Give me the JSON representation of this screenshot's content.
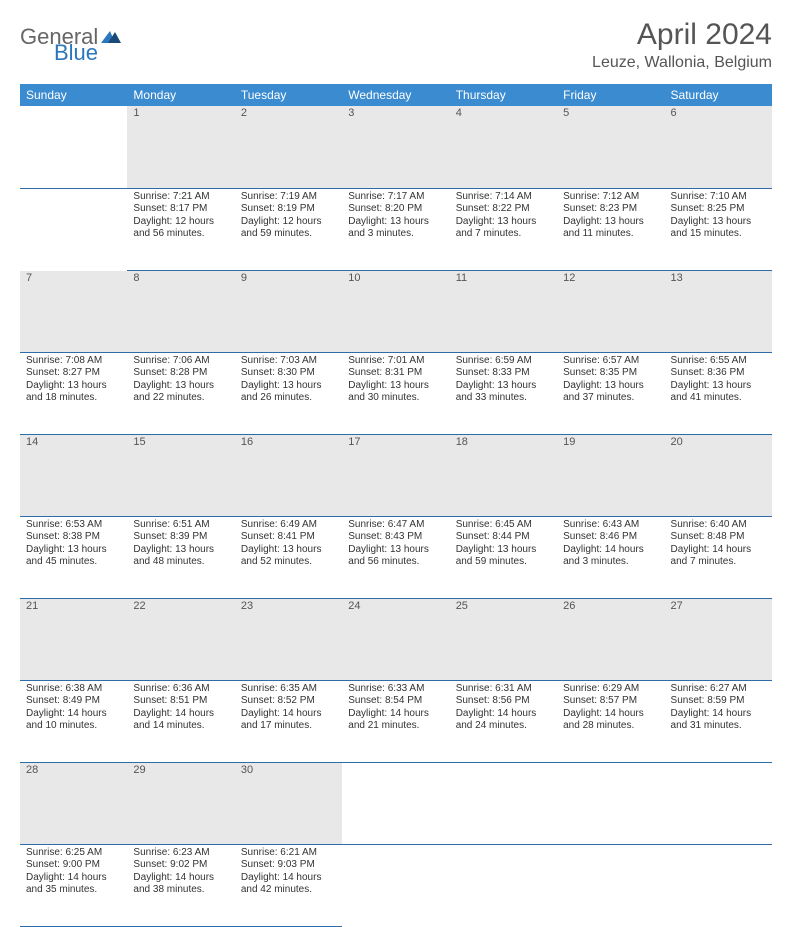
{
  "logo": {
    "text1": "General",
    "text2": "Blue"
  },
  "title": "April 2024",
  "location": "Leuze, Wallonia, Belgium",
  "colors": {
    "header_bg": "#3a8bd0",
    "header_fg": "#ffffff",
    "daynum_bg": "#e8e8e8",
    "rule": "#2c6ca8",
    "logo_accent": "#2c77bb"
  },
  "day_headers": [
    "Sunday",
    "Monday",
    "Tuesday",
    "Wednesday",
    "Thursday",
    "Friday",
    "Saturday"
  ],
  "weeks": [
    [
      null,
      {
        "n": "1",
        "sr": "Sunrise: 7:21 AM",
        "ss": "Sunset: 8:17 PM",
        "d1": "Daylight: 12 hours",
        "d2": "and 56 minutes."
      },
      {
        "n": "2",
        "sr": "Sunrise: 7:19 AM",
        "ss": "Sunset: 8:19 PM",
        "d1": "Daylight: 12 hours",
        "d2": "and 59 minutes."
      },
      {
        "n": "3",
        "sr": "Sunrise: 7:17 AM",
        "ss": "Sunset: 8:20 PM",
        "d1": "Daylight: 13 hours",
        "d2": "and 3 minutes."
      },
      {
        "n": "4",
        "sr": "Sunrise: 7:14 AM",
        "ss": "Sunset: 8:22 PM",
        "d1": "Daylight: 13 hours",
        "d2": "and 7 minutes."
      },
      {
        "n": "5",
        "sr": "Sunrise: 7:12 AM",
        "ss": "Sunset: 8:23 PM",
        "d1": "Daylight: 13 hours",
        "d2": "and 11 minutes."
      },
      {
        "n": "6",
        "sr": "Sunrise: 7:10 AM",
        "ss": "Sunset: 8:25 PM",
        "d1": "Daylight: 13 hours",
        "d2": "and 15 minutes."
      }
    ],
    [
      {
        "n": "7",
        "sr": "Sunrise: 7:08 AM",
        "ss": "Sunset: 8:27 PM",
        "d1": "Daylight: 13 hours",
        "d2": "and 18 minutes."
      },
      {
        "n": "8",
        "sr": "Sunrise: 7:06 AM",
        "ss": "Sunset: 8:28 PM",
        "d1": "Daylight: 13 hours",
        "d2": "and 22 minutes."
      },
      {
        "n": "9",
        "sr": "Sunrise: 7:03 AM",
        "ss": "Sunset: 8:30 PM",
        "d1": "Daylight: 13 hours",
        "d2": "and 26 minutes."
      },
      {
        "n": "10",
        "sr": "Sunrise: 7:01 AM",
        "ss": "Sunset: 8:31 PM",
        "d1": "Daylight: 13 hours",
        "d2": "and 30 minutes."
      },
      {
        "n": "11",
        "sr": "Sunrise: 6:59 AM",
        "ss": "Sunset: 8:33 PM",
        "d1": "Daylight: 13 hours",
        "d2": "and 33 minutes."
      },
      {
        "n": "12",
        "sr": "Sunrise: 6:57 AM",
        "ss": "Sunset: 8:35 PM",
        "d1": "Daylight: 13 hours",
        "d2": "and 37 minutes."
      },
      {
        "n": "13",
        "sr": "Sunrise: 6:55 AM",
        "ss": "Sunset: 8:36 PM",
        "d1": "Daylight: 13 hours",
        "d2": "and 41 minutes."
      }
    ],
    [
      {
        "n": "14",
        "sr": "Sunrise: 6:53 AM",
        "ss": "Sunset: 8:38 PM",
        "d1": "Daylight: 13 hours",
        "d2": "and 45 minutes."
      },
      {
        "n": "15",
        "sr": "Sunrise: 6:51 AM",
        "ss": "Sunset: 8:39 PM",
        "d1": "Daylight: 13 hours",
        "d2": "and 48 minutes."
      },
      {
        "n": "16",
        "sr": "Sunrise: 6:49 AM",
        "ss": "Sunset: 8:41 PM",
        "d1": "Daylight: 13 hours",
        "d2": "and 52 minutes."
      },
      {
        "n": "17",
        "sr": "Sunrise: 6:47 AM",
        "ss": "Sunset: 8:43 PM",
        "d1": "Daylight: 13 hours",
        "d2": "and 56 minutes."
      },
      {
        "n": "18",
        "sr": "Sunrise: 6:45 AM",
        "ss": "Sunset: 8:44 PM",
        "d1": "Daylight: 13 hours",
        "d2": "and 59 minutes."
      },
      {
        "n": "19",
        "sr": "Sunrise: 6:43 AM",
        "ss": "Sunset: 8:46 PM",
        "d1": "Daylight: 14 hours",
        "d2": "and 3 minutes."
      },
      {
        "n": "20",
        "sr": "Sunrise: 6:40 AM",
        "ss": "Sunset: 8:48 PM",
        "d1": "Daylight: 14 hours",
        "d2": "and 7 minutes."
      }
    ],
    [
      {
        "n": "21",
        "sr": "Sunrise: 6:38 AM",
        "ss": "Sunset: 8:49 PM",
        "d1": "Daylight: 14 hours",
        "d2": "and 10 minutes."
      },
      {
        "n": "22",
        "sr": "Sunrise: 6:36 AM",
        "ss": "Sunset: 8:51 PM",
        "d1": "Daylight: 14 hours",
        "d2": "and 14 minutes."
      },
      {
        "n": "23",
        "sr": "Sunrise: 6:35 AM",
        "ss": "Sunset: 8:52 PM",
        "d1": "Daylight: 14 hours",
        "d2": "and 17 minutes."
      },
      {
        "n": "24",
        "sr": "Sunrise: 6:33 AM",
        "ss": "Sunset: 8:54 PM",
        "d1": "Daylight: 14 hours",
        "d2": "and 21 minutes."
      },
      {
        "n": "25",
        "sr": "Sunrise: 6:31 AM",
        "ss": "Sunset: 8:56 PM",
        "d1": "Daylight: 14 hours",
        "d2": "and 24 minutes."
      },
      {
        "n": "26",
        "sr": "Sunrise: 6:29 AM",
        "ss": "Sunset: 8:57 PM",
        "d1": "Daylight: 14 hours",
        "d2": "and 28 minutes."
      },
      {
        "n": "27",
        "sr": "Sunrise: 6:27 AM",
        "ss": "Sunset: 8:59 PM",
        "d1": "Daylight: 14 hours",
        "d2": "and 31 minutes."
      }
    ],
    [
      {
        "n": "28",
        "sr": "Sunrise: 6:25 AM",
        "ss": "Sunset: 9:00 PM",
        "d1": "Daylight: 14 hours",
        "d2": "and 35 minutes."
      },
      {
        "n": "29",
        "sr": "Sunrise: 6:23 AM",
        "ss": "Sunset: 9:02 PM",
        "d1": "Daylight: 14 hours",
        "d2": "and 38 minutes."
      },
      {
        "n": "30",
        "sr": "Sunrise: 6:21 AM",
        "ss": "Sunset: 9:03 PM",
        "d1": "Daylight: 14 hours",
        "d2": "and 42 minutes."
      },
      null,
      null,
      null,
      null
    ]
  ]
}
